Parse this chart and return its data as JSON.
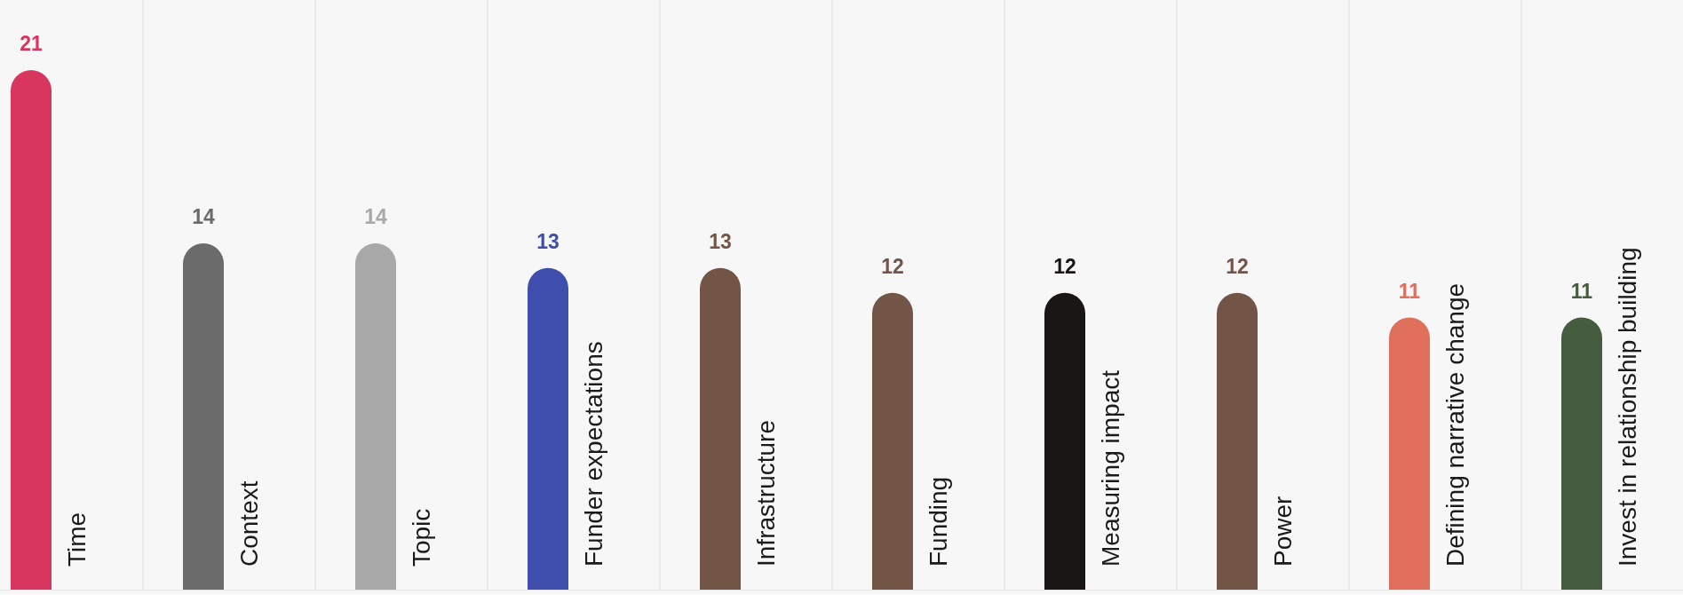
{
  "chart_data": {
    "type": "bar",
    "categories": [
      "Time",
      "Context",
      "Topic",
      "Funder expectations",
      "Infrastructure",
      "Funding",
      "Measuring impact",
      "Power",
      "Defining narrative change",
      "Invest in relationship building"
    ],
    "values": [
      21,
      14,
      14,
      13,
      13,
      12,
      12,
      12,
      11,
      11
    ],
    "colors": [
      "#d9365f",
      "#6b6b6b",
      "#a8a8a8",
      "#3f4ead",
      "#735548",
      "#735548",
      "#1a1616",
      "#735548",
      "#e06f5c",
      "#465c3f"
    ],
    "data_labels": true,
    "grid": "x"
  }
}
